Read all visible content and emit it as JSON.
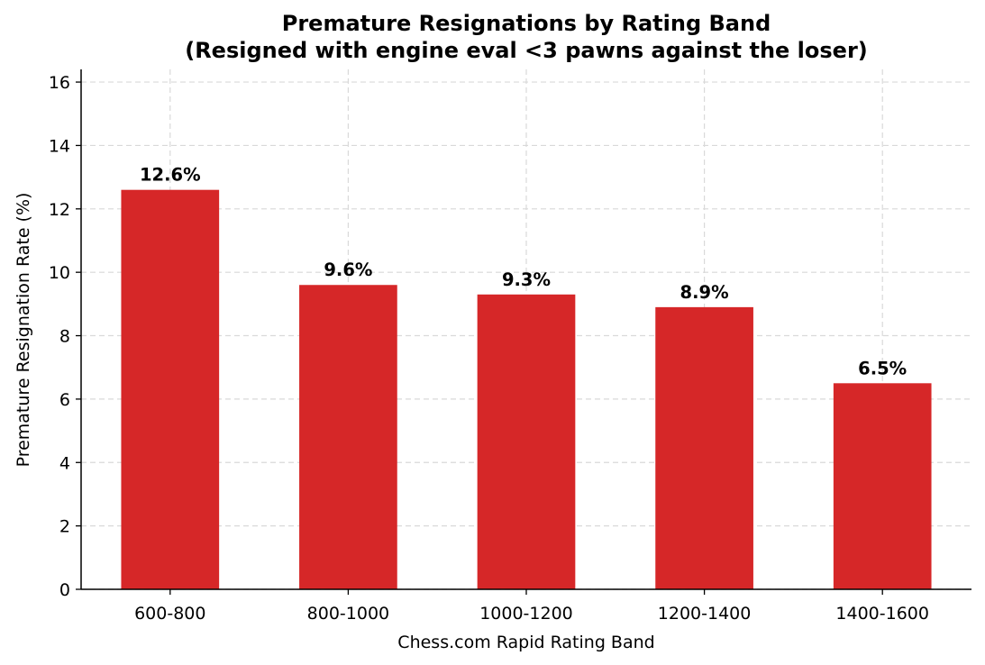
{
  "chart_data": {
    "type": "bar",
    "title": "Premature Resignations by Rating Band",
    "subtitle": "(Resigned with engine eval <3 pawns against the loser)",
    "xlabel": "Chess.com Rapid Rating Band",
    "ylabel": "Premature Resignation Rate (%)",
    "categories": [
      "600-800",
      "800-1000",
      "1000-1200",
      "1200-1400",
      "1400-1600"
    ],
    "values": [
      12.6,
      9.6,
      9.3,
      8.9,
      6.5
    ],
    "data_labels": [
      "12.6%",
      "9.6%",
      "9.3%",
      "8.9%",
      "6.5%"
    ],
    "ylim": [
      0,
      16.4
    ],
    "yticks": [
      0,
      2,
      4,
      6,
      8,
      10,
      12,
      14,
      16
    ],
    "grid": true,
    "bar_color": "#d62728"
  }
}
